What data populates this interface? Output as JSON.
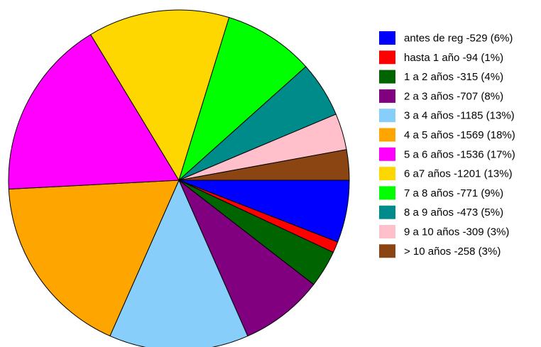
{
  "chart_data": {
    "type": "pie",
    "start_angle_deg": 0,
    "direction": "clockwise",
    "legend_position": "right",
    "slices": [
      {
        "label": "antes de reg -529 (6%)",
        "value": 529,
        "color": "#0000FF"
      },
      {
        "label": "hasta 1 año -94 (1%)",
        "value": 94,
        "color": "#FF0000"
      },
      {
        "label": "1 a 2 años -315 (4%)",
        "value": 315,
        "color": "#006400"
      },
      {
        "label": "2 a 3 años -707 (8%)",
        "value": 707,
        "color": "#800080"
      },
      {
        "label": "3 a 4 años -1185 (13%)",
        "value": 1185,
        "color": "#87CEFA"
      },
      {
        "label": "4 a 5 años -1569 (18%)",
        "value": 1569,
        "color": "#FFA500"
      },
      {
        "label": "5 a 6 años -1536 (17%)",
        "value": 1536,
        "color": "#FF00FF"
      },
      {
        "label": "6 a7 años -1201 (13%)",
        "value": 1201,
        "color": "#FFD700"
      },
      {
        "label": "7 a 8 años -771 (9%)",
        "value": 771,
        "color": "#00FF00"
      },
      {
        "label": "8 a 9 años -473 (5%)",
        "value": 473,
        "color": "#008B8B"
      },
      {
        "label": "9 a 10 años -309 (3%)",
        "value": 309,
        "color": "#FFC0CB"
      },
      {
        "label": "> 10 años -258 (3%)",
        "value": 258,
        "color": "#8B4513"
      }
    ]
  }
}
